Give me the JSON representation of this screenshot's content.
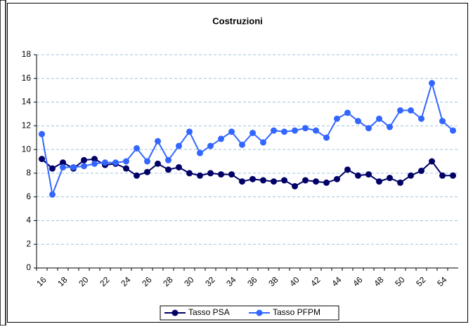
{
  "chart_data": {
    "type": "line",
    "title": "Costruzioni",
    "categories": [
      "16",
      null,
      "18",
      null,
      "20",
      null,
      "22",
      null,
      "24",
      null,
      "26",
      null,
      "28",
      null,
      "30",
      null,
      "32",
      null,
      "34",
      null,
      "36",
      null,
      "38",
      null,
      "40",
      null,
      "42",
      null,
      "44",
      null,
      "46",
      null,
      "48",
      null,
      "50",
      null,
      "52",
      null,
      "54",
      null
    ],
    "series": [
      {
        "name": "Tasso PSA",
        "color": "#000066",
        "values": [
          9.2,
          8.4,
          8.9,
          8.4,
          9.1,
          9.2,
          8.7,
          8.8,
          8.4,
          7.8,
          8.1,
          8.8,
          8.3,
          8.5,
          8.0,
          7.8,
          8.0,
          7.9,
          7.9,
          7.3,
          7.5,
          7.4,
          7.3,
          7.4,
          6.9,
          7.4,
          7.3,
          7.2,
          7.5,
          8.3,
          7.8,
          7.9,
          7.3,
          7.6,
          7.2,
          7.8,
          8.2,
          9.0,
          7.8,
          7.8
        ]
      },
      {
        "name": "Tasso PFPM",
        "color": "#3366ff",
        "values": [
          11.3,
          6.2,
          8.5,
          8.5,
          8.6,
          8.8,
          8.9,
          8.9,
          9.0,
          10.1,
          9.0,
          10.7,
          9.1,
          10.3,
          11.5,
          9.7,
          10.3,
          10.9,
          11.5,
          10.4,
          11.4,
          10.6,
          11.6,
          11.5,
          11.6,
          11.8,
          11.6,
          11.0,
          12.6,
          13.1,
          12.4,
          11.8,
          12.6,
          11.9,
          13.3,
          13.3,
          12.6,
          15.6,
          12.4,
          11.6
        ]
      }
    ],
    "ylim": [
      0,
      18
    ],
    "yticks": [
      0,
      2,
      4,
      6,
      8,
      10,
      12,
      14,
      16,
      18
    ],
    "grid": true,
    "legend": "bottom"
  }
}
